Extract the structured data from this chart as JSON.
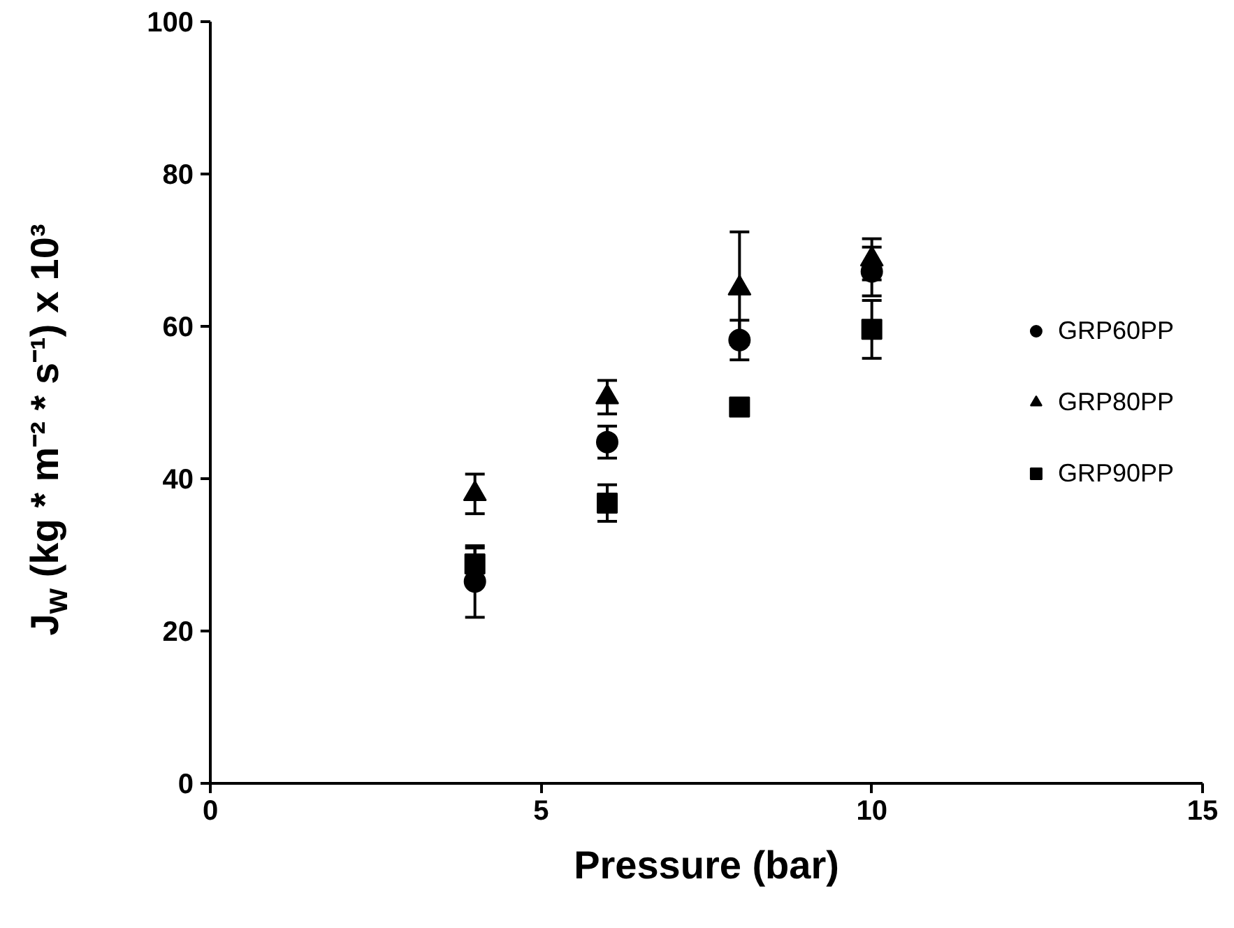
{
  "chart_data": {
    "type": "scatter",
    "xlabel": "Pressure (bar)",
    "ylabel": "J$_{w}$ (kg * m⁻² * s⁻¹) x 10³",
    "x": [
      4,
      6,
      8,
      10
    ],
    "xlim": [
      0,
      15
    ],
    "xticks": [
      0,
      5,
      10,
      15
    ],
    "ylim": [
      0,
      100
    ],
    "yticks": [
      0,
      20,
      40,
      60,
      80,
      100
    ],
    "grid": false,
    "legend": "right",
    "series": [
      {
        "name": "GRP60PP",
        "color": "#000000",
        "marker": "circle",
        "values": [
          26.5,
          44.8,
          58.2,
          67.2
        ],
        "errors": [
          4.7,
          2.1,
          2.6,
          3.2
        ]
      },
      {
        "name": "GRP80PP",
        "color": "#000000",
        "marker": "triangle",
        "values": [
          38,
          50.7,
          65,
          68.8
        ],
        "errors": [
          2.6,
          2.2,
          7.4,
          2.7
        ]
      },
      {
        "name": "GRP90PP",
        "color": "#000000",
        "marker": "square",
        "values": [
          28.8,
          36.8,
          49.4,
          59.6
        ],
        "errors": [
          2.1,
          2.4,
          null,
          3.8
        ]
      }
    ]
  }
}
